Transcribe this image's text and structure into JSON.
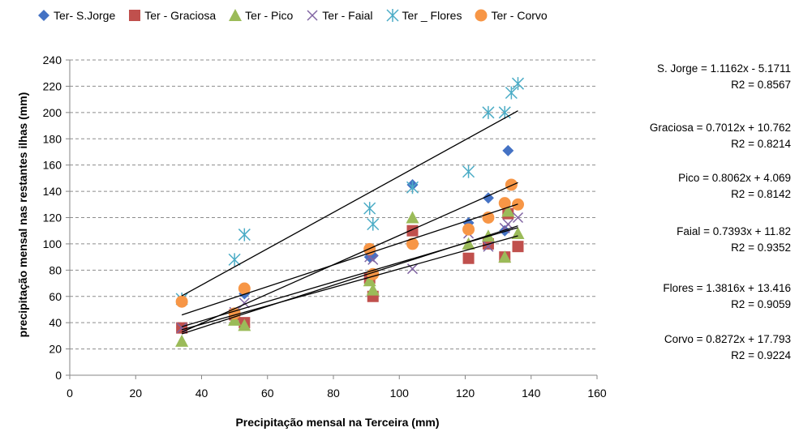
{
  "chart_data": {
    "type": "scatter",
    "xlabel": "Precipitação mensal na Terceira (mm)",
    "ylabel": "precipitação mensal nas restantes ilhas (mm)",
    "xlim": [
      0,
      160
    ],
    "ylim": [
      0,
      240
    ],
    "x_ticks": [
      "0",
      "20",
      "40",
      "60",
      "80",
      "100",
      "120",
      "140",
      "160"
    ],
    "y_ticks": [
      "0",
      "20",
      "40",
      "60",
      "80",
      "100",
      "120",
      "140",
      "160",
      "180",
      "200",
      "220",
      "240"
    ],
    "grid": "horizontal dashed",
    "legend_position": "top",
    "series": [
      {
        "name": "Ter- S.Jorge",
        "marker": "diamond",
        "color": "#4472C4",
        "x": [
          34,
          50,
          53,
          91,
          92,
          104,
          121,
          127,
          132,
          133,
          136
        ],
        "y": [
          36,
          45,
          62,
          90,
          91,
          145,
          116,
          135,
          110,
          171,
          130
        ]
      },
      {
        "name": "Ter - Graciosa",
        "marker": "square",
        "color": "#C0504D",
        "x": [
          34,
          50,
          53,
          91,
          92,
          104,
          121,
          127,
          132,
          133,
          136
        ],
        "y": [
          36,
          46,
          40,
          74,
          60,
          110,
          89,
          100,
          90,
          123,
          98
        ]
      },
      {
        "name": "Ter - Pico",
        "marker": "triangle",
        "color": "#9BBB59",
        "x": [
          34,
          50,
          53,
          91,
          92,
          104,
          121,
          127,
          132,
          133,
          136
        ],
        "y": [
          26,
          42,
          38,
          72,
          65,
          120,
          100,
          106,
          90,
          125,
          108
        ]
      },
      {
        "name": "Ter - Faial",
        "marker": "x",
        "color": "#8064A2",
        "x": [
          34,
          50,
          53,
          91,
          92,
          104,
          121,
          127,
          132,
          133,
          136
        ],
        "y": [
          36,
          48,
          55,
          90,
          88,
          81,
          108,
          98,
          112,
          115,
          120
        ]
      },
      {
        "name": "Ter _ Flores",
        "marker": "star",
        "color": "#4BACC6",
        "x": [
          34,
          50,
          53,
          91,
          92,
          104,
          121,
          127,
          132,
          134,
          136
        ],
        "y": [
          58,
          88,
          107,
          127,
          115,
          143,
          155,
          200,
          200,
          215,
          222
        ]
      },
      {
        "name": "Ter - Corvo",
        "marker": "circle",
        "color": "#F79646",
        "x": [
          34,
          50,
          53,
          91,
          92,
          104,
          121,
          127,
          132,
          134,
          136
        ],
        "y": [
          56,
          47,
          66,
          96,
          77,
          100,
          111,
          120,
          131,
          145,
          130
        ]
      }
    ],
    "trendlines": [
      {
        "slope": 1.1162,
        "intercept": -5.1711,
        "label": "S. Jorge = 1.1162x - 5.1711",
        "r2": "R2 = 0.8567"
      },
      {
        "slope": 0.7012,
        "intercept": 10.762,
        "label": "Graciosa = 0.7012x + 10.762",
        "r2": "R2 = 0.8214"
      },
      {
        "slope": 0.8062,
        "intercept": 4.069,
        "label": "Pico = 0.8062x + 4.069",
        "r2": "R2 = 0.8142"
      },
      {
        "slope": 0.7393,
        "intercept": 11.82,
        "label": "Faial = 0.7393x + 11.82",
        "r2": "R2 = 0.9352"
      },
      {
        "slope": 1.3816,
        "intercept": 13.416,
        "label": "Flores = 1.3816x + 13.416",
        "r2": "R2 = 0.9059"
      },
      {
        "slope": 0.8272,
        "intercept": 17.793,
        "label": "Corvo = 0.8272x + 17.793",
        "r2": "R2 = 0.9224"
      }
    ],
    "trendline_range": [
      34,
      136
    ]
  }
}
